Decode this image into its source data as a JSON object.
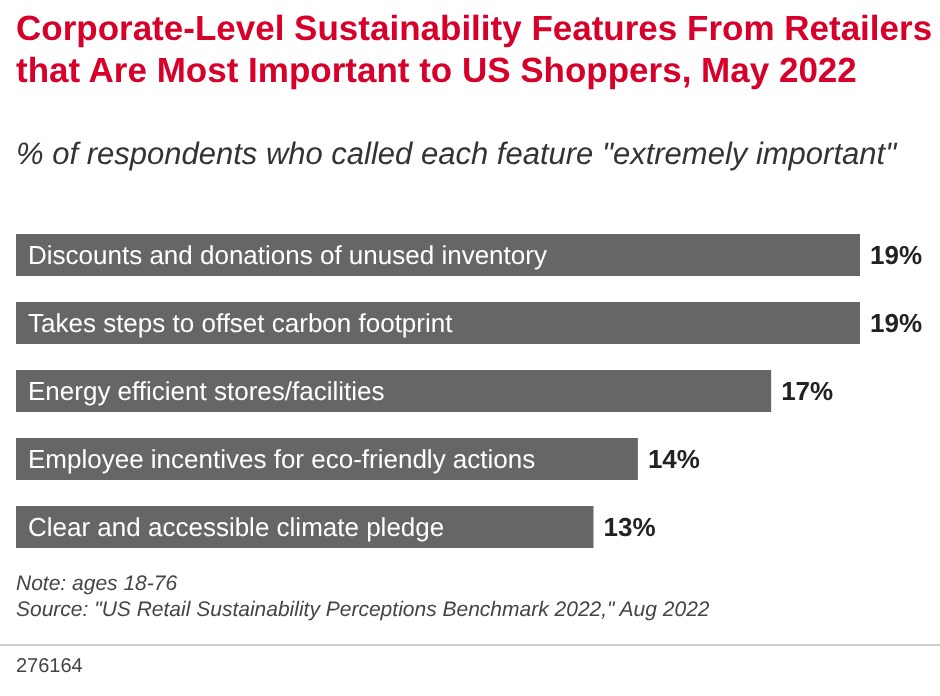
{
  "chart_data": {
    "type": "bar",
    "orientation": "horizontal",
    "title": "Corporate-Level Sustainability Features From Retailers that Are Most Important to US Shoppers, May 2022",
    "subtitle": "% of respondents who called each feature \"extremely important\"",
    "categories": [
      "Discounts and donations of unused inventory",
      "Takes steps to offset carbon footprint",
      "Energy efficient stores/facilities",
      "Employee incentives for eco-friendly actions",
      "Clear and accessible climate pledge"
    ],
    "values": [
      19,
      19,
      17,
      14,
      13
    ],
    "value_labels": [
      "19%",
      "19%",
      "17%",
      "14%",
      "13%"
    ],
    "color": "#666666",
    "annotations": [
      "Note: ages 18-76",
      "Source: \"US Retail Sustainability Perceptions Benchmark 2022,\" Aug 2022",
      "276164"
    ]
  }
}
